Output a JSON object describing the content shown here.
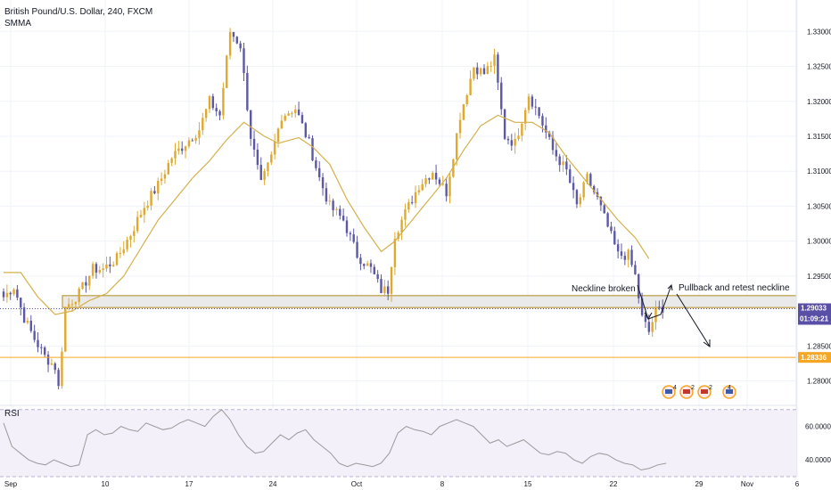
{
  "header": {
    "symbol_title": "British Pound/U.S. Dollar, 240, FXCM",
    "indicator": "SMMA"
  },
  "rsi_panel": {
    "label": "RSI"
  },
  "colors": {
    "up": "#e0a92e",
    "down": "#5d58a6",
    "smma": "#d4b04c",
    "rsi": "#9a9a9a",
    "zone_fill": "#e6e6e6",
    "zone_border": "#b08a1e",
    "target": "#f5a623",
    "price_tag": "#5a4fa6",
    "grid": "#f0f3fa",
    "axis_text": "#131722"
  },
  "icons": {
    "event_badges": [
      "flag-us-icon",
      "flag-us-gb-icon",
      "flag-us-gb-icon",
      "flag-us-gb-icon"
    ]
  },
  "chart_data": [
    {
      "type": "candlestick",
      "title": "British Pound/U.S. Dollar, 240, FXCM",
      "y_ticks": [
        "1.33000",
        "1.32500",
        "1.32000",
        "1.31500",
        "1.31000",
        "1.30500",
        "1.30000",
        "1.29500",
        "1.29000",
        "1.28500",
        "1.28000"
      ],
      "x_ticks": [
        "Sep",
        "10",
        "17",
        "24",
        "Oct",
        "8",
        "15",
        "22",
        "29",
        "Nov",
        "6"
      ],
      "ylim": [
        1.2765,
        1.3345
      ],
      "grid": true,
      "current_price": {
        "value": "1.29033",
        "countdown": "01:09:21"
      },
      "target_price": {
        "value": "1.28336"
      },
      "neckline_zone": {
        "low": 1.2905,
        "high": 1.2922
      },
      "anchors": [
        [
          0,
          1.292
        ],
        [
          3,
          1.2935
        ],
        [
          6,
          1.289
        ],
        [
          9,
          1.286
        ],
        [
          12,
          1.2835
        ],
        [
          15,
          1.282
        ],
        [
          16,
          1.279
        ],
        [
          18,
          1.2905
        ],
        [
          22,
          1.2925
        ],
        [
          26,
          1.296
        ],
        [
          29,
          1.296
        ],
        [
          33,
          1.2975
        ],
        [
          37,
          1.301
        ],
        [
          41,
          1.305
        ],
        [
          45,
          1.308
        ],
        [
          49,
          1.312
        ],
        [
          53,
          1.314
        ],
        [
          57,
          1.316
        ],
        [
          60,
          1.32
        ],
        [
          63,
          1.318
        ],
        [
          66,
          1.33
        ],
        [
          69,
          1.328
        ],
        [
          72,
          1.315
        ],
        [
          75,
          1.308
        ],
        [
          78,
          1.312
        ],
        [
          81,
          1.318
        ],
        [
          85,
          1.319
        ],
        [
          89,
          1.314
        ],
        [
          92,
          1.309
        ],
        [
          95,
          1.305
        ],
        [
          99,
          1.303
        ],
        [
          103,
          1.298
        ],
        [
          107,
          1.296
        ],
        [
          110,
          1.293
        ],
        [
          112,
          1.293
        ],
        [
          114,
          1.301
        ],
        [
          117,
          1.304
        ],
        [
          121,
          1.308
        ],
        [
          125,
          1.31
        ],
        [
          129,
          1.307
        ],
        [
          133,
          1.318
        ],
        [
          137,
          1.325
        ],
        [
          140,
          1.324
        ],
        [
          143,
          1.326
        ],
        [
          146,
          1.315
        ],
        [
          149,
          1.314
        ],
        [
          153,
          1.321
        ],
        [
          156,
          1.318
        ],
        [
          160,
          1.313
        ],
        [
          164,
          1.31
        ],
        [
          167,
          1.305
        ],
        [
          170,
          1.309
        ],
        [
          173,
          1.306
        ],
        [
          176,
          1.302
        ],
        [
          179,
          1.298
        ],
        [
          182,
          1.298
        ],
        [
          184,
          1.295
        ],
        [
          186,
          1.289
        ],
        [
          188,
          1.287
        ],
        [
          190,
          1.29
        ],
        [
          192,
          1.2905
        ]
      ],
      "smma_anchors": [
        [
          0,
          1.2955
        ],
        [
          5,
          1.2955
        ],
        [
          10,
          1.292
        ],
        [
          15,
          1.2895
        ],
        [
          20,
          1.29
        ],
        [
          25,
          1.2915
        ],
        [
          30,
          1.2925
        ],
        [
          35,
          1.295
        ],
        [
          40,
          1.299
        ],
        [
          45,
          1.303
        ],
        [
          50,
          1.306
        ],
        [
          55,
          1.309
        ],
        [
          60,
          1.3115
        ],
        [
          65,
          1.3145
        ],
        [
          70,
          1.317
        ],
        [
          73,
          1.316
        ],
        [
          76,
          1.315
        ],
        [
          80,
          1.314
        ],
        [
          86,
          1.3148
        ],
        [
          90,
          1.3135
        ],
        [
          95,
          1.311
        ],
        [
          100,
          1.306
        ],
        [
          105,
          1.302
        ],
        [
          110,
          1.2985
        ],
        [
          114,
          1.3
        ],
        [
          119,
          1.303
        ],
        [
          124,
          1.306
        ],
        [
          129,
          1.309
        ],
        [
          134,
          1.313
        ],
        [
          139,
          1.3165
        ],
        [
          144,
          1.318
        ],
        [
          149,
          1.317
        ],
        [
          154,
          1.317
        ],
        [
          159,
          1.3155
        ],
        [
          164,
          1.312
        ],
        [
          169,
          1.309
        ],
        [
          174,
          1.306
        ],
        [
          179,
          1.303
        ],
        [
          184,
          1.3005
        ],
        [
          188,
          1.2975
        ]
      ],
      "annotations": [
        {
          "text": "Neckline broken"
        },
        {
          "text": "Pullback and retest neckline"
        }
      ]
    },
    {
      "type": "line",
      "title": "RSI",
      "y_ticks": [
        "60.0000",
        "40.0000"
      ],
      "ylim": [
        30,
        72
      ],
      "series": [
        {
          "values": [
            62,
            48,
            44,
            40,
            38,
            37,
            40,
            38,
            36,
            37,
            55,
            58,
            55,
            56,
            60,
            58,
            57,
            62,
            60,
            58,
            59,
            62,
            64,
            62,
            60,
            66,
            70,
            64,
            55,
            48,
            44,
            45,
            50,
            55,
            52,
            56,
            58,
            52,
            48,
            44,
            38,
            36,
            38,
            37,
            36,
            38,
            44,
            56,
            60,
            58,
            57,
            55,
            60,
            62,
            64,
            62,
            60,
            55,
            50,
            52,
            48,
            50,
            52,
            48,
            44,
            43,
            45,
            44,
            40,
            38,
            42,
            44,
            43,
            40,
            38,
            37,
            34,
            35,
            37,
            38
          ]
        }
      ]
    }
  ]
}
